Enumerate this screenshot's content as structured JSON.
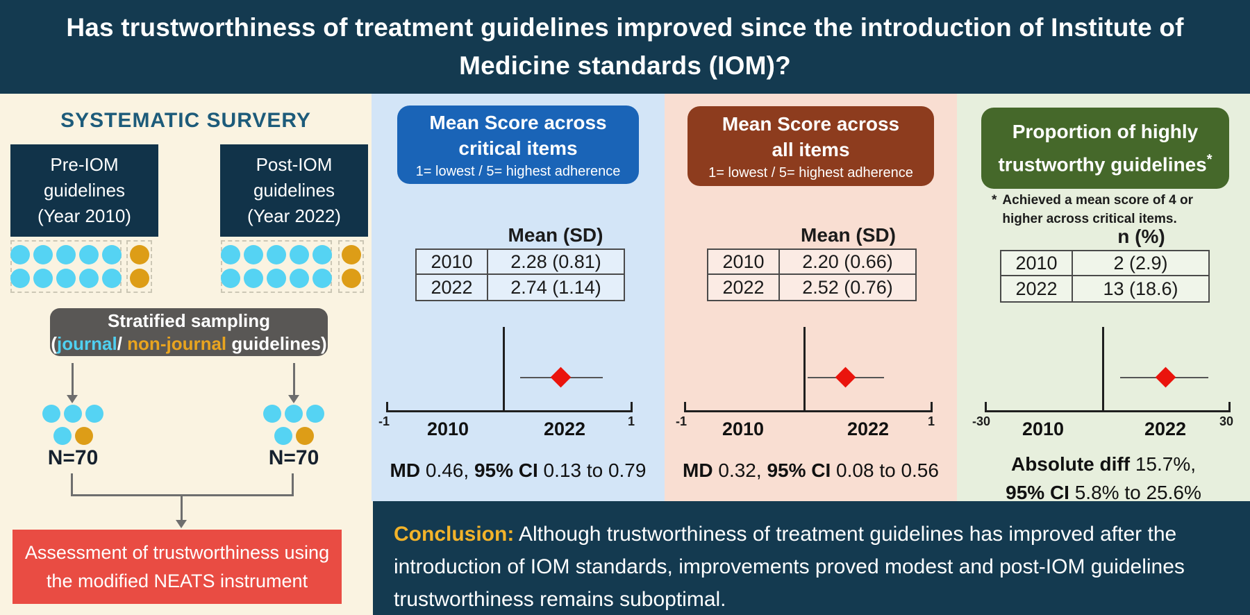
{
  "colors": {
    "navy": "#143a50",
    "cream_bg": "#faf3e1",
    "blue_panel_bg": "#d3e5f7",
    "blue_header": "#1a64b7",
    "peach_panel_bg": "#f9ded2",
    "brown_header": "#8d3c1e",
    "green_panel_bg": "#e7efdd",
    "green_header": "#45682a",
    "red_box": "#e94c43",
    "gray_box": "#595755",
    "journal_cyan": "#55d3f3",
    "non_journal_orange": "#dd9d17",
    "diamond_red": "#ea140d",
    "conclusion_yellow": "#f2b32a",
    "survey_title_teal": "#1d5b7a"
  },
  "header": {
    "title_line1": "Has trustworthiness of treatment guidelines improved since the introduction of Institute of",
    "title_line2": "Medicine standards (IOM)?"
  },
  "survey": {
    "title": "SYSTEMATIC SURVERY",
    "pre_box_line1": "Pre-IOM",
    "pre_box_line2": "guidelines",
    "pre_box_line3": "(Year 2010)",
    "post_box_line1": "Post-IOM",
    "post_box_line2": "guidelines",
    "post_box_line3": "(Year 2022)",
    "pre_grid_journal": {
      "rows": [
        [
          "cyan",
          "cyan",
          "cyan",
          "cyan",
          "cyan"
        ],
        [
          "cyan",
          "cyan",
          "cyan",
          "cyan",
          "cyan"
        ]
      ]
    },
    "pre_grid_nonjournal": {
      "rows": [
        [
          "orange"
        ],
        [
          "orange"
        ]
      ]
    },
    "post_grid_journal": {
      "rows": [
        [
          "cyan",
          "cyan",
          "cyan",
          "cyan",
          "cyan"
        ],
        [
          "cyan",
          "cyan",
          "cyan",
          "cyan",
          "cyan"
        ]
      ]
    },
    "post_grid_nonjournal": {
      "rows": [
        [
          "orange"
        ],
        [
          "orange"
        ]
      ]
    },
    "stratified_line1": "Stratified sampling",
    "stratified_open": "(",
    "stratified_journal": "journal",
    "stratified_slash": "/ ",
    "stratified_nonjournal": "non-journal",
    "stratified_rest": " guidelines)",
    "sample_left_dots": {
      "rows": [
        [
          "cyan",
          "cyan",
          "cyan"
        ],
        [
          "cyan",
          "orange"
        ]
      ]
    },
    "sample_right_dots": {
      "rows": [
        [
          "cyan",
          "cyan",
          "cyan"
        ],
        [
          "cyan",
          "orange"
        ]
      ]
    },
    "sample_left_n": "N=70",
    "sample_right_n": "N=70",
    "assessment_line1": "Assessment of trustworthiness using",
    "assessment_line2": "the modified NEATS instrument"
  },
  "critical_panel": {
    "title_line1": "Mean Score across",
    "title_line2": "critical items",
    "subtitle": "1= lowest / 5= highest adherence",
    "table_header": "Mean (SD)",
    "rows": [
      [
        "2010",
        "2.28 (0.81)"
      ],
      [
        "2022",
        "2.74 (1.14)"
      ]
    ],
    "axis_min": "-1",
    "axis_max": "1",
    "group_left": "2010",
    "group_right": "2022",
    "result_label1": "MD",
    "result_value1": " 0.46, ",
    "result_label2": "95% CI",
    "result_value2": " 0.13 to 0.79",
    "forest": {
      "type": "forest",
      "estimate": 0.46,
      "ci_low": 0.13,
      "ci_high": 0.79,
      "axis_range": [
        -1,
        1
      ]
    }
  },
  "all_panel": {
    "title_line1": "Mean Score across",
    "title_line2": "all items",
    "subtitle": "1= lowest / 5= highest adherence",
    "table_header": "Mean (SD)",
    "rows": [
      [
        "2010",
        "2.20 (0.66)"
      ],
      [
        "2022",
        "2.52 (0.76)"
      ]
    ],
    "axis_min": "-1",
    "axis_max": "1",
    "group_left": "2010",
    "group_right": "2022",
    "result_label1": "MD",
    "result_value1": " 0.32, ",
    "result_label2": "95% CI",
    "result_value2": " 0.08 to 0.56",
    "forest": {
      "type": "forest",
      "estimate": 0.32,
      "ci_low": 0.08,
      "ci_high": 0.56,
      "axis_range": [
        -1,
        1
      ]
    }
  },
  "proportion_panel": {
    "title_line1": "Proportion of highly",
    "title_line2": "trustworthy guidelines",
    "title_asterisk": "*",
    "footnote_marker": "*",
    "footnote_text": "Achieved a mean score of 4 or higher across critical items.",
    "table_header": "n (%)",
    "rows": [
      [
        "2010",
        "2 (2.9)"
      ],
      [
        "2022",
        "13 (18.6)"
      ]
    ],
    "axis_min": "-30",
    "axis_max": "30",
    "group_left": "2010",
    "group_right": "2022",
    "result_label1": "Absolute diff",
    "result_value1": " 15.7%,",
    "result_label2": "95% CI",
    "result_value2": " 5.8% to 25.6%",
    "forest": {
      "type": "forest",
      "estimate": 15.7,
      "ci_low": 5.8,
      "ci_high": 25.6,
      "axis_range": [
        -30,
        30
      ]
    }
  },
  "conclusion": {
    "label": "Conclusion:",
    "text": " Although trustworthiness of treatment guidelines has improved after the introduction of IOM standards, improvements proved modest and post-IOM guidelines trustworthiness remains suboptimal."
  }
}
